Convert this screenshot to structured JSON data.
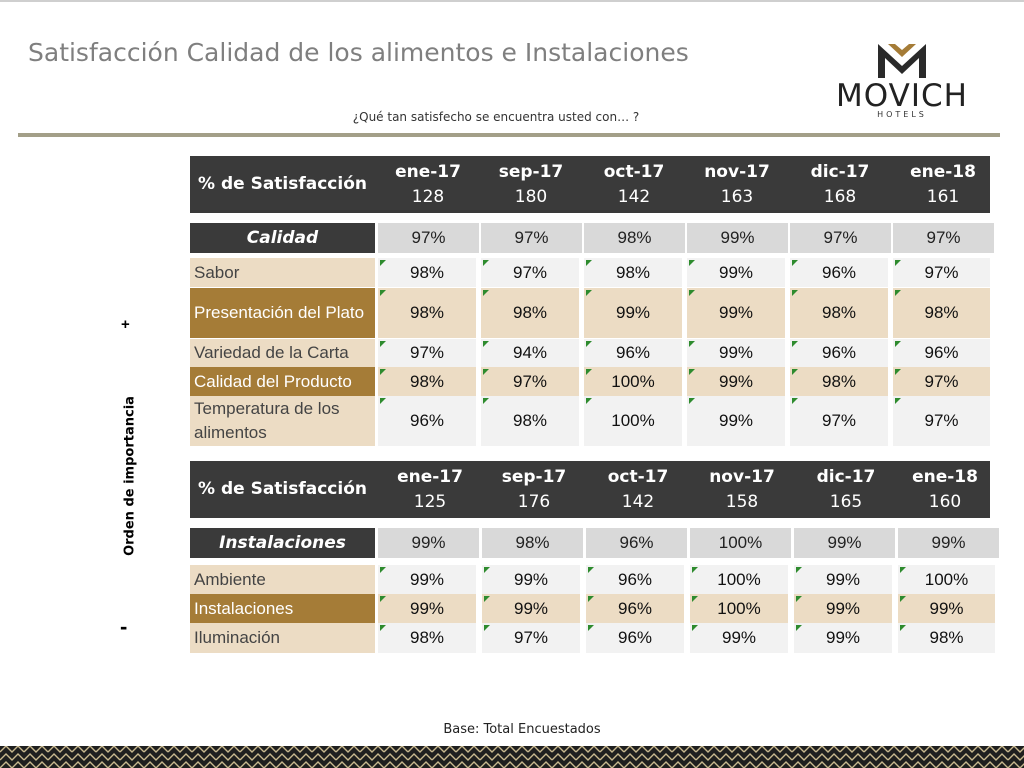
{
  "title": "Satisfacción Calidad de los alimentos e Instalaciones",
  "question": "¿Qué tan satisfecho se encuentra usted con… ?",
  "logo": {
    "word": "MOVICH",
    "sub": "HOTELS"
  },
  "axis": {
    "plus": "+",
    "minus": "-",
    "label": "Orden de importancia"
  },
  "footer": {
    "base": "Base: Total Encuestados"
  },
  "colors": {
    "dark": "#3a3a3a",
    "tan": "#ecdcc4",
    "gold": "#a57c37",
    "rule": "#a39f88",
    "grey": "#d9d9d9"
  },
  "tables": [
    {
      "header": {
        "label": "% de Satisfacción",
        "months": [
          "ene-17",
          "sep-17",
          "oct-17",
          "nov-17",
          "dic-17",
          "ene-18"
        ],
        "bases": [
          "128",
          "180",
          "142",
          "163",
          "168",
          "161"
        ]
      },
      "category": {
        "label": "Calidad",
        "values": [
          "97%",
          "97%",
          "98%",
          "99%",
          "97%",
          "97%"
        ]
      },
      "rows": [
        {
          "label": "Sabor",
          "values": [
            "98%",
            "97%",
            "98%",
            "99%",
            "96%",
            "97%"
          ]
        },
        {
          "label": "Presentación del Plato",
          "values": [
            "98%",
            "98%",
            "99%",
            "99%",
            "98%",
            "98%"
          ]
        },
        {
          "label": "Variedad de la Carta",
          "values": [
            "97%",
            "94%",
            "96%",
            "99%",
            "96%",
            "96%"
          ]
        },
        {
          "label": "Calidad del Producto",
          "values": [
            "98%",
            "97%",
            "100%",
            "99%",
            "98%",
            "97%"
          ]
        },
        {
          "label": "Temperatura de los alimentos",
          "values": [
            "96%",
            "98%",
            "100%",
            "99%",
            "97%",
            "97%"
          ]
        }
      ]
    },
    {
      "header": {
        "label": "% de Satisfacción",
        "months": [
          "ene-17",
          "sep-17",
          "oct-17",
          "nov-17",
          "dic-17",
          "ene-18"
        ],
        "bases": [
          "125",
          "176",
          "142",
          "158",
          "165",
          "160"
        ]
      },
      "category": {
        "label": "Instalaciones",
        "values": [
          "99%",
          "98%",
          "96%",
          "100%",
          "99%",
          "99%"
        ]
      },
      "rows": [
        {
          "label": "Ambiente",
          "values": [
            "99%",
            "99%",
            "96%",
            "100%",
            "99%",
            "100%"
          ]
        },
        {
          "label": "Instalaciones",
          "values": [
            "99%",
            "99%",
            "96%",
            "100%",
            "99%",
            "99%"
          ]
        },
        {
          "label": "Iluminación",
          "values": [
            "98%",
            "97%",
            "96%",
            "99%",
            "99%",
            "98%"
          ]
        }
      ]
    }
  ]
}
